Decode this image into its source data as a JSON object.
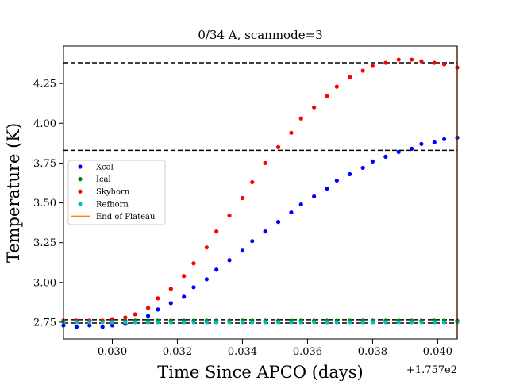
{
  "chart_data": {
    "type": "scatter",
    "title": "0/34 A, scanmode=3",
    "xlabel": "Time Since APCO (days)",
    "ylabel": "Temperature (K)",
    "x_offset_label": "+1.757e2",
    "xlim": [
      0.0285,
      0.0406
    ],
    "ylim": [
      2.645,
      4.485
    ],
    "xticks": [
      0.03,
      0.032,
      0.034,
      0.036,
      0.038,
      0.04
    ],
    "xtick_labels": [
      "0.030",
      "0.032",
      "0.034",
      "0.036",
      "0.038",
      "0.040"
    ],
    "yticks": [
      2.75,
      3.0,
      3.25,
      3.5,
      3.75,
      4.0,
      4.25
    ],
    "ytick_labels": [
      "2.75",
      "3.00",
      "3.25",
      "3.50",
      "3.75",
      "4.00",
      "4.25"
    ],
    "grid": false,
    "legend_position": "center-left",
    "hlines": [
      4.38,
      3.83,
      2.765,
      2.745
    ],
    "vline_x": 0.0406,
    "x": [
      0.0285,
      0.0289,
      0.0293,
      0.0297,
      0.03,
      0.0304,
      0.0307,
      0.0311,
      0.0314,
      0.0318,
      0.0322,
      0.0325,
      0.0329,
      0.0332,
      0.0336,
      0.034,
      0.0343,
      0.0347,
      0.0351,
      0.0355,
      0.0358,
      0.0362,
      0.0366,
      0.0369,
      0.0373,
      0.0377,
      0.038,
      0.0384,
      0.0388,
      0.0392,
      0.0395,
      0.0399,
      0.0402,
      0.0406
    ],
    "series": [
      {
        "name": "Xcal",
        "color": "#0000ff",
        "values": [
          2.73,
          2.72,
          2.73,
          2.72,
          2.73,
          2.74,
          2.76,
          2.79,
          2.83,
          2.87,
          2.91,
          2.97,
          3.02,
          3.08,
          3.14,
          3.2,
          3.26,
          3.32,
          3.38,
          3.44,
          3.49,
          3.54,
          3.59,
          3.64,
          3.68,
          3.72,
          3.76,
          3.79,
          3.82,
          3.84,
          3.87,
          3.88,
          3.9,
          3.91
        ]
      },
      {
        "name": "Ical",
        "color": "#008000",
        "values": [
          2.76,
          2.76,
          2.76,
          2.76,
          2.76,
          2.76,
          2.76,
          2.76,
          2.76,
          2.76,
          2.76,
          2.76,
          2.76,
          2.76,
          2.76,
          2.76,
          2.76,
          2.76,
          2.76,
          2.76,
          2.76,
          2.76,
          2.76,
          2.76,
          2.76,
          2.76,
          2.76,
          2.76,
          2.76,
          2.76,
          2.76,
          2.76,
          2.76,
          2.76
        ]
      },
      {
        "name": "Skyhorn",
        "color": "#ff0000",
        "values": [
          2.76,
          2.76,
          2.76,
          2.76,
          2.77,
          2.78,
          2.8,
          2.84,
          2.9,
          2.96,
          3.04,
          3.12,
          3.22,
          3.32,
          3.42,
          3.53,
          3.63,
          3.75,
          3.85,
          3.94,
          4.03,
          4.1,
          4.17,
          4.23,
          4.29,
          4.33,
          4.36,
          4.38,
          4.4,
          4.4,
          4.39,
          4.38,
          4.37,
          4.35
        ]
      },
      {
        "name": "Refhorn",
        "color": "#00bfbf",
        "values": [
          2.75,
          2.75,
          2.75,
          2.75,
          2.75,
          2.75,
          2.75,
          2.75,
          2.75,
          2.75,
          2.75,
          2.75,
          2.75,
          2.75,
          2.75,
          2.75,
          2.75,
          2.75,
          2.75,
          2.75,
          2.75,
          2.75,
          2.75,
          2.75,
          2.75,
          2.75,
          2.75,
          2.75,
          2.75,
          2.75,
          2.75,
          2.75,
          2.75,
          2.75
        ]
      }
    ],
    "legend_line": {
      "name": "End of Plateau",
      "color": "#ff7f0e"
    }
  }
}
